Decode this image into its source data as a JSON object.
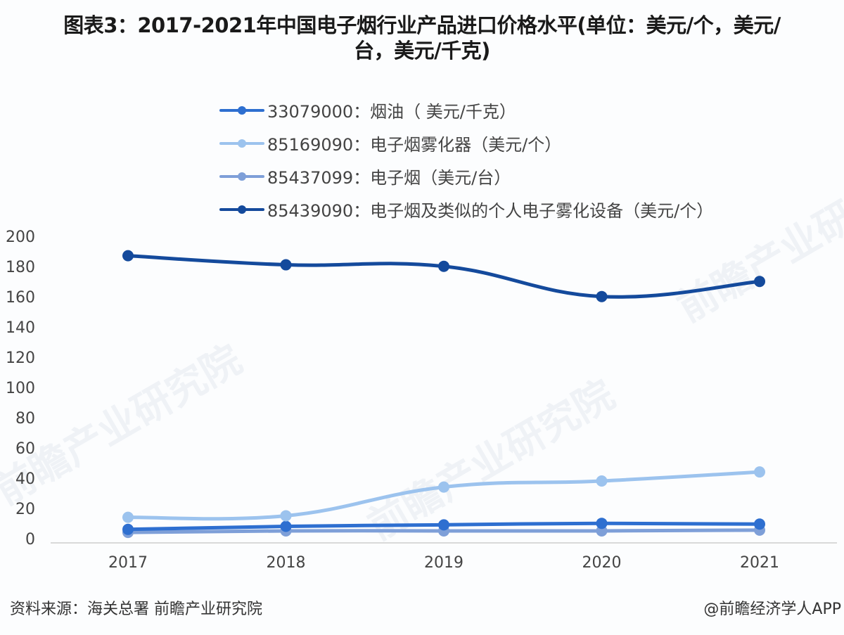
{
  "title": {
    "line1": "图表3：2017-2021年中国电子烟行业产品进口价格水平(单位：美元/个，美元/",
    "line2": "台，美元/千克)"
  },
  "legend": [
    {
      "label": "33079000：烟油（ 美元/千克）",
      "color": "#2e6fd0"
    },
    {
      "label": "85169090：电子烟雾化器（美元/个）",
      "color": "#9cc3ee"
    },
    {
      "label": "85437099：电子烟（美元/台）",
      "color": "#7e9fd8"
    },
    {
      "label": "85439090：电子烟及类似的个人电子雾化设备（美元/个）",
      "color": "#144a9c"
    }
  ],
  "footer": {
    "source": "资料来源：海关总署 前瞻产业研究院",
    "credit": "@前瞻经济学人APP"
  },
  "watermark": "前瞻产业研究院",
  "chart_data": {
    "type": "line",
    "title": "图表3：2017-2021年中国电子烟行业产品进口价格水平(单位：美元/个，美元/台，美元/千克)",
    "xlabel": "",
    "ylabel": "",
    "categories": [
      "2017",
      "2018",
      "2019",
      "2020",
      "2021"
    ],
    "yticks": [
      "0",
      "20",
      "40",
      "60",
      "80",
      "100",
      "120",
      "140",
      "160",
      "180",
      "200"
    ],
    "ylim": [
      0,
      200
    ],
    "grid": false,
    "legend_position": "top",
    "series": [
      {
        "name": "33079000：烟油（ 美元/千克）",
        "color": "#2e6fd0",
        "values": [
          8,
          10,
          11,
          12,
          11.5
        ]
      },
      {
        "name": "85169090：电子烟雾化器（美元/个）",
        "color": "#9cc3ee",
        "values": [
          16,
          17,
          36,
          40,
          46
        ]
      },
      {
        "name": "85437099：电子烟（美元/台）",
        "color": "#7e9fd8",
        "values": [
          6,
          7,
          7,
          7,
          7.5
        ]
      },
      {
        "name": "85439090：电子烟及类似的个人电子雾化设备（美元/个）",
        "color": "#144a9c",
        "values": [
          189,
          183,
          182,
          162,
          172
        ]
      }
    ]
  }
}
